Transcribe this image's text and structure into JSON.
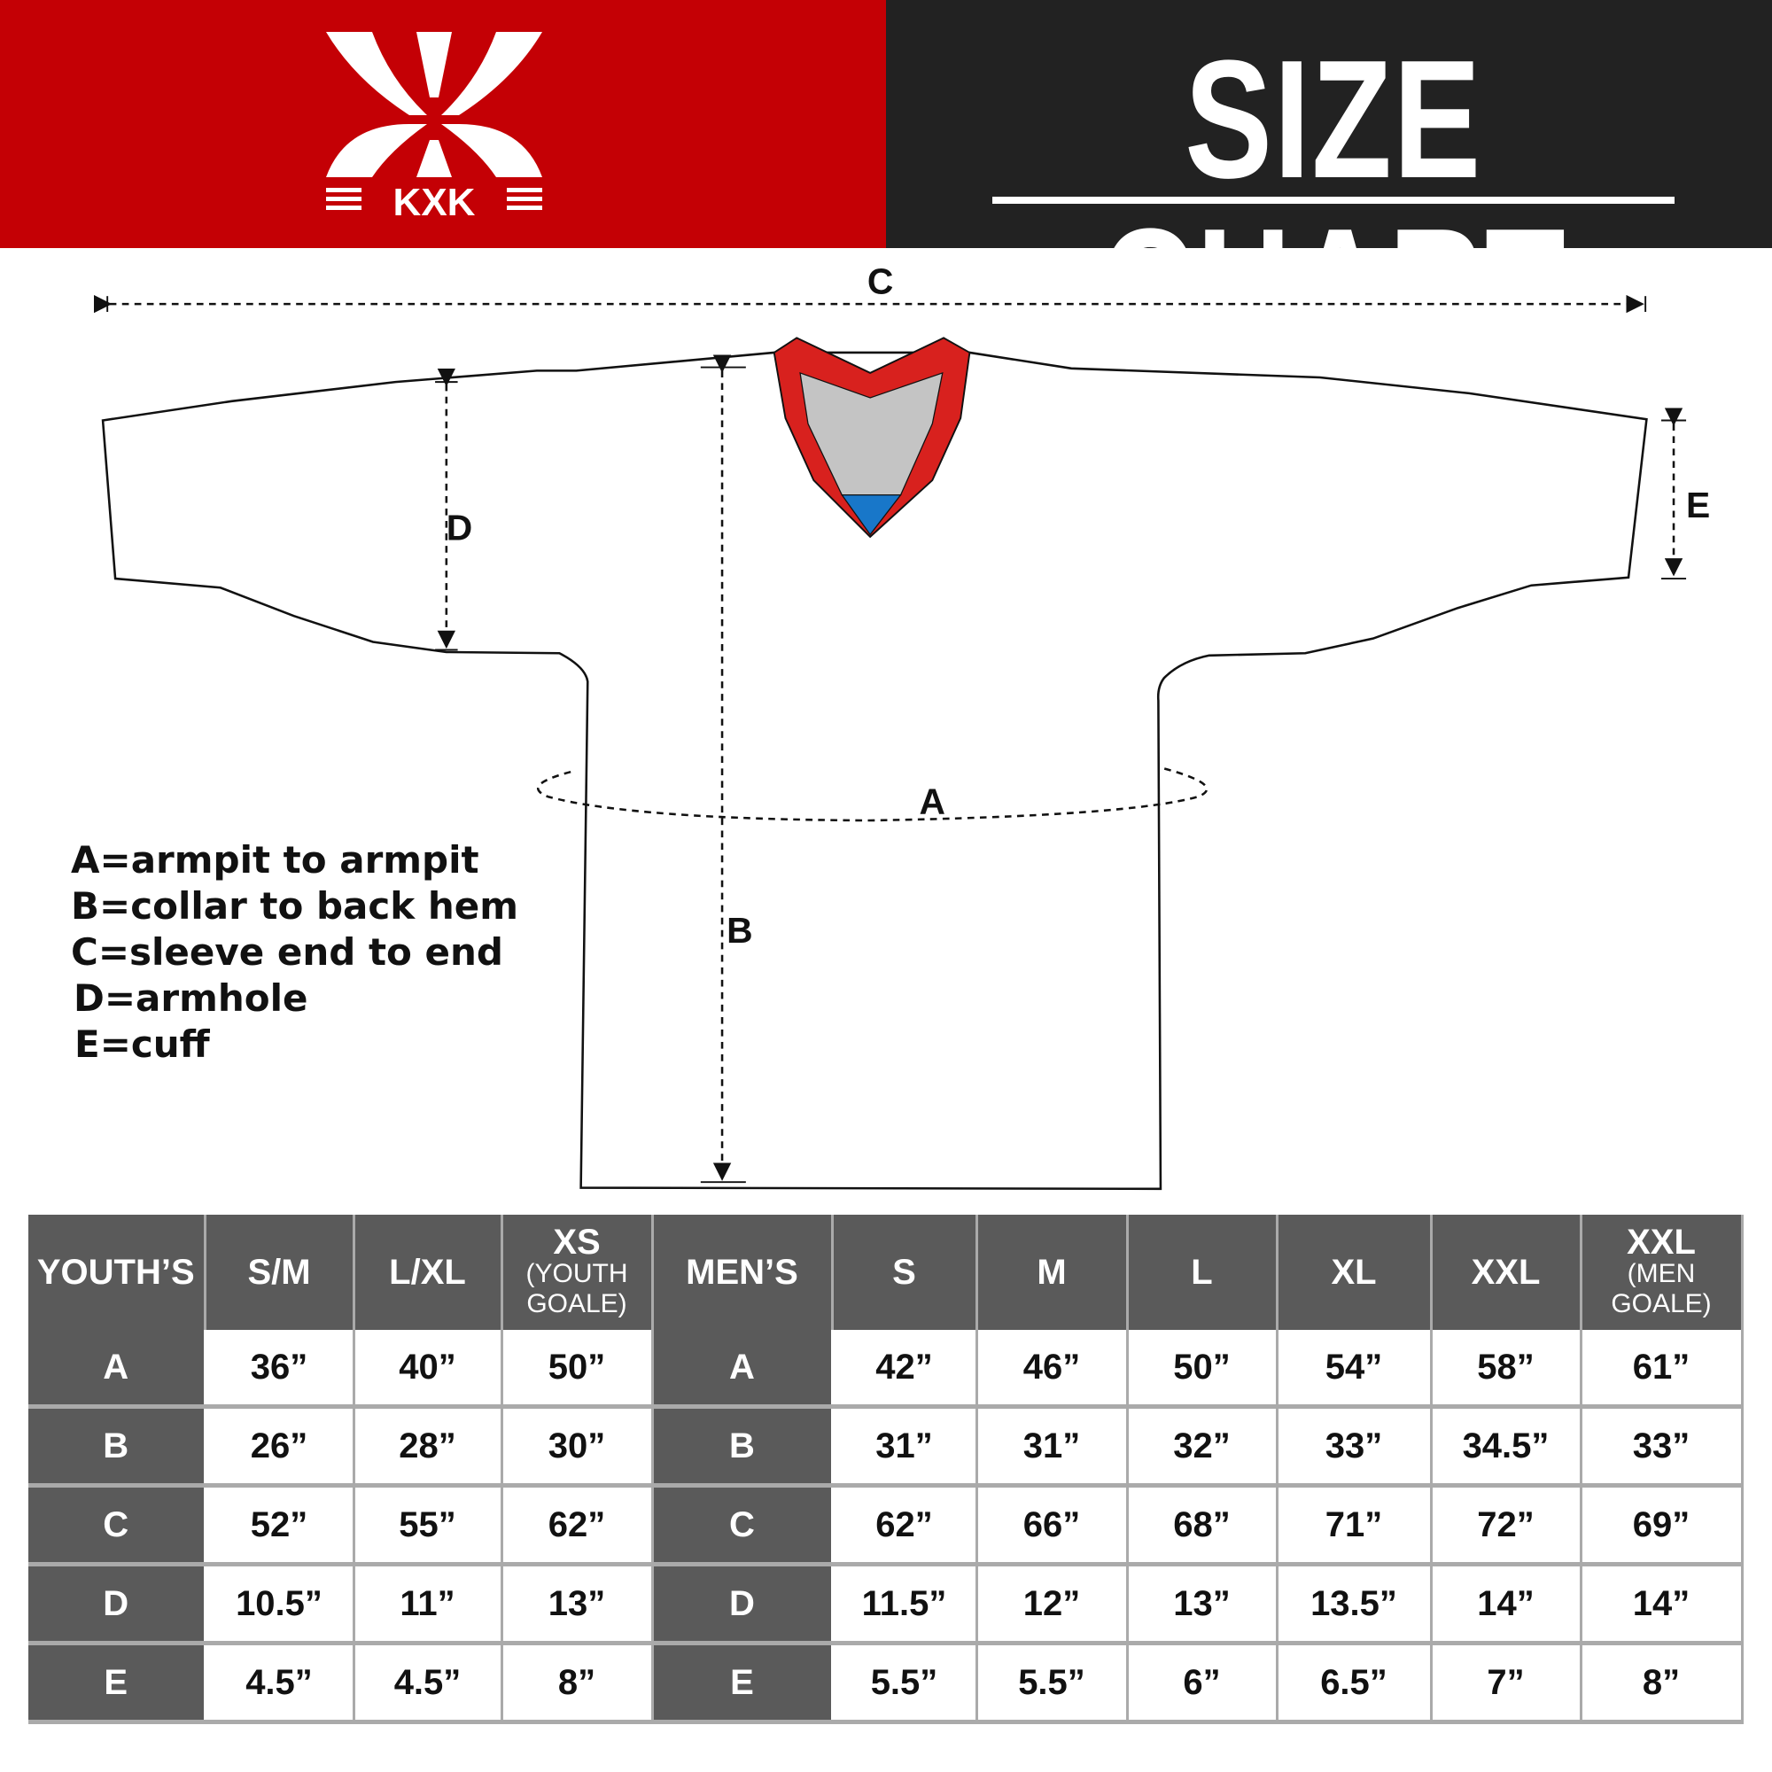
{
  "header": {
    "brand": "KXK",
    "title": "SIZE CHART",
    "colors": {
      "brand_red": "#c40005",
      "header_dark": "#222222",
      "table_header": "#5a5a5a",
      "collar_red": "#d8211e",
      "collar_blue": "#1877c9"
    }
  },
  "diagram": {
    "labels": {
      "a": "A",
      "b": "B",
      "c": "C",
      "d": "D",
      "e": "E"
    }
  },
  "legend": [
    "A=armpit to armpit",
    "B=collar to back hem",
    "C=sleeve end to end",
    "D=armhole",
    "E=cuff"
  ],
  "table": {
    "youth_header": "YOUTH’S",
    "men_header": "MEN’S",
    "youth_sizes": [
      {
        "label": "S/M",
        "sub": ""
      },
      {
        "label": "L/XL",
        "sub": ""
      },
      {
        "label": "XS",
        "sub": "(YOUTH GOALE)"
      }
    ],
    "men_sizes": [
      {
        "label": "S",
        "sub": ""
      },
      {
        "label": "M",
        "sub": ""
      },
      {
        "label": "L",
        "sub": ""
      },
      {
        "label": "XL",
        "sub": ""
      },
      {
        "label": "XXL",
        "sub": ""
      },
      {
        "label": "XXL",
        "sub": "(MEN GOALE)"
      }
    ],
    "rows": [
      {
        "label": "A",
        "youth": [
          "36”",
          "40”",
          "50”"
        ],
        "men": [
          "42”",
          "46”",
          "50”",
          "54”",
          "58”",
          "61”"
        ]
      },
      {
        "label": "B",
        "youth": [
          "26”",
          "28”",
          "30”"
        ],
        "men": [
          "31”",
          "31”",
          "32”",
          "33”",
          "34.5”",
          "33”"
        ]
      },
      {
        "label": "C",
        "youth": [
          "52”",
          "55”",
          "62”"
        ],
        "men": [
          "62”",
          "66”",
          "68”",
          "71”",
          "72”",
          "69”"
        ]
      },
      {
        "label": "D",
        "youth": [
          "10.5”",
          "11”",
          "13”"
        ],
        "men": [
          "11.5”",
          "12”",
          "13”",
          "13.5”",
          "14”",
          "14”"
        ]
      },
      {
        "label": "E",
        "youth": [
          "4.5”",
          "4.5”",
          "8”"
        ],
        "men": [
          "5.5”",
          "5.5”",
          "6”",
          "6.5”",
          "7”",
          "8”"
        ]
      }
    ]
  }
}
